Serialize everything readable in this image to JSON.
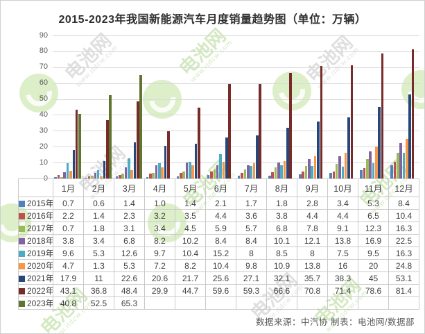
{
  "title": "2015-2023年我国新能源汽车月度销量趋势图（单位：万辆）",
  "footer": {
    "text": "数据来源：中汽协  制表：电池网/数据部"
  },
  "watermark": {
    "brand": "电池网",
    "url": "www.itdcw.com"
  },
  "chart_data": {
    "type": "bar",
    "title": "2015-2023年我国新能源汽车月度销量趋势图（单位：万辆）",
    "unit": "万辆",
    "categories": [
      "1月",
      "2月",
      "3月",
      "4月",
      "5月",
      "6月",
      "7月",
      "8月",
      "9月",
      "10月",
      "11月",
      "12月"
    ],
    "yticks": [
      0,
      10,
      20,
      30,
      40,
      50,
      60,
      70,
      80,
      90
    ],
    "ylim": [
      0,
      90
    ],
    "grid": true,
    "legend_position": "table-left",
    "gridline_color": "#d9d9d9",
    "series": [
      {
        "name": "2015年",
        "color": "#4F81BD",
        "values": [
          "0.7",
          "0.6",
          "1.4",
          "1.0",
          "1.4",
          "2.1",
          "1.7",
          "1.8",
          "2.8",
          "3.4",
          "5.3",
          "8.4"
        ]
      },
      {
        "name": "2016年",
        "color": "#C0504D",
        "values": [
          "2.2",
          "1.4",
          "2.3",
          "3.2",
          "3.5",
          "4.4",
          "3.6",
          "3.8",
          "4.4",
          "4.4",
          "6.5",
          "10.4"
        ]
      },
      {
        "name": "2017年",
        "color": "#9BBB59",
        "values": [
          "0.7",
          "1.8",
          "3.1",
          "3.4",
          "4.5",
          "5.9",
          "5.7",
          "6.8",
          "7.8",
          "9.1",
          "12.3",
          "16.3"
        ]
      },
      {
        "name": "2018年",
        "color": "#8064A2",
        "values": [
          "3.8",
          "3.4",
          "6.8",
          "8.2",
          "10.2",
          "8.4",
          "8.4",
          "10.1",
          "12.1",
          "13.8",
          "16.9",
          "22.5"
        ]
      },
      {
        "name": "2019年",
        "color": "#4BACC6",
        "values": [
          "9.6",
          "5.3",
          "12.6",
          "9.7",
          "10.4",
          "15.2",
          "8",
          "8.5",
          "8",
          "7.5",
          "9.5",
          "16.3"
        ]
      },
      {
        "name": "2020年",
        "color": "#F79646",
        "values": [
          "4.7",
          "1.3",
          "5.3",
          "7.2",
          "8.2",
          "10.4",
          "9.8",
          "10.9",
          "13.8",
          "16",
          "20",
          "24.8"
        ]
      },
      {
        "name": "2021年",
        "color": "#25477B",
        "values": [
          "17.9",
          "11",
          "22.6",
          "20.6",
          "21.7",
          "25.6",
          "27.1",
          "32.1",
          "35.7",
          "38.3",
          "45",
          "53.1"
        ]
      },
      {
        "name": "2022年",
        "color": "#772C2A",
        "values": [
          "43.1",
          "36.8",
          "48.4",
          "29.9",
          "44.7",
          "59.6",
          "59.3",
          "66.6",
          "70.8",
          "71.4",
          "78.6",
          "81.4"
        ]
      },
      {
        "name": "2023年",
        "color": "#5F7530",
        "values": [
          "40.8",
          "52.5",
          "65.3",
          "",
          "",
          "",
          "",
          "",
          "",
          "",
          "",
          ""
        ]
      }
    ]
  }
}
